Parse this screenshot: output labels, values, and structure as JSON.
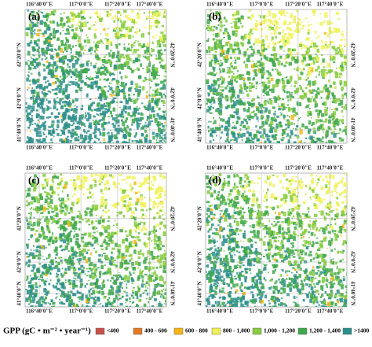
{
  "panels": [
    {
      "label": "(a)"
    },
    {
      "label": "(b)"
    },
    {
      "label": "(c)"
    },
    {
      "label": "(d)"
    }
  ],
  "longitude_labels": [
    "116°40'0\"E",
    "117°0'0\"E",
    "117°20'0\"E",
    "117°40'0\"E"
  ],
  "latitude_labels": [
    "42°20'0\"N",
    "42°0'0\"N",
    "41°40'0\"N"
  ],
  "legend": {
    "title": "GPP (gC • m⁻² • year⁻¹)",
    "classes": [
      {
        "label": "<400",
        "color": "#c8504a"
      },
      {
        "label": "400 - 600",
        "color": "#e07a28"
      },
      {
        "label": "600 - 800",
        "color": "#f4b614"
      },
      {
        "label": "800 - 1,000",
        "color": "#eef25a"
      },
      {
        "label": "1,000 - 1,200",
        "color": "#86cc3e"
      },
      {
        "label": "1,200 - 1,400",
        "color": "#3fa84c"
      },
      {
        "label": ">1400",
        "color": "#2d8f8c"
      }
    ]
  }
}
